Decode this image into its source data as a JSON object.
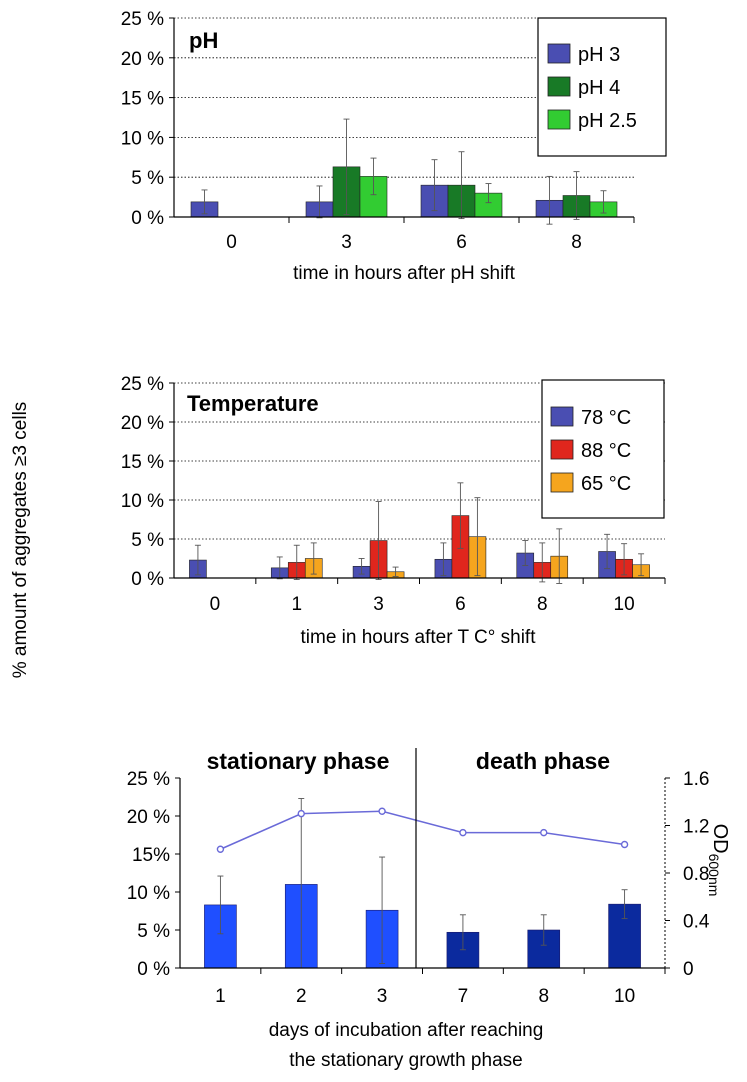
{
  "shared_ylabel": "% amount of  aggregates   ≥3 cells",
  "chart_data": [
    {
      "type": "bar",
      "panel_title": "pH",
      "xlabel": "time in hours after pH shift",
      "ylim": [
        0,
        25
      ],
      "ytick_labels": [
        "0 %",
        "5 %",
        "10 %",
        "15 %",
        "20 %",
        "25 %"
      ],
      "grid": "horizontal dotted",
      "legend_placement": "top-right",
      "categories": [
        "0",
        "3",
        "6",
        "8"
      ],
      "series": [
        {
          "name": "pH 3",
          "color": "#4a4eb2",
          "values": [
            1.9,
            1.9,
            4.0,
            2.1
          ],
          "errors": [
            1.5,
            2.0,
            3.2,
            3.0
          ]
        },
        {
          "name": "pH 4",
          "color": "#187a26",
          "values": [
            null,
            6.3,
            4.0,
            2.7
          ],
          "errors": [
            null,
            6.0,
            4.2,
            3.0
          ]
        },
        {
          "name": "pH 2.5",
          "color": "#32cc32",
          "values": [
            null,
            5.1,
            3.0,
            1.9
          ],
          "errors": [
            null,
            2.3,
            1.2,
            1.4
          ]
        }
      ]
    },
    {
      "type": "bar",
      "panel_title": "Temperature",
      "xlabel": "time in hours after T C° shift",
      "ylim": [
        0,
        25
      ],
      "ytick_labels": [
        "0 %",
        "5 %",
        "10 %",
        "15 %",
        "20 %",
        "25 %"
      ],
      "grid": "horizontal dotted",
      "legend_placement": "top-right",
      "categories": [
        "0",
        "1",
        "3",
        "6",
        "8",
        "10"
      ],
      "series": [
        {
          "name": "78 °C",
          "color": "#4a4eb2",
          "values": [
            2.3,
            1.3,
            1.5,
            2.4,
            3.2,
            3.4
          ],
          "errors": [
            1.9,
            1.4,
            1.0,
            2.1,
            1.6,
            2.2
          ]
        },
        {
          "name": "88 °C",
          "color": "#e0261d",
          "values": [
            null,
            2.0,
            4.8,
            8.0,
            2.0,
            2.4
          ],
          "errors": [
            null,
            2.2,
            5.0,
            4.2,
            2.5,
            2.0
          ]
        },
        {
          "name": "65 °C",
          "color": "#f5a51e",
          "values": [
            null,
            2.5,
            0.8,
            5.3,
            2.8,
            1.7
          ],
          "errors": [
            null,
            2.0,
            0.6,
            5.0,
            3.5,
            1.4
          ]
        }
      ]
    },
    {
      "type": "bar+line",
      "phases": [
        "stationary phase",
        "death  phase"
      ],
      "xlabel_lines": [
        "days of incubation after reaching",
        "the stationary growth phase"
      ],
      "categories": [
        "1",
        "2",
        "3",
        "7",
        "8",
        "10"
      ],
      "ylim": [
        0,
        25
      ],
      "ytick_labels": [
        "0 %",
        "5 %",
        "10 %",
        "15%",
        "20 %",
        "25 %"
      ],
      "y2lim": [
        0,
        1.6
      ],
      "y2tick_labels": [
        "0",
        "0.4",
        "0.8",
        "1.2",
        "1.6"
      ],
      "y2label": "OD",
      "y2label_sub": "600nm",
      "grid": "none",
      "bars": {
        "values": [
          8.3,
          11.0,
          7.6,
          4.7,
          5.0,
          8.4
        ],
        "errors": [
          3.8,
          11.3,
          7.0,
          2.3,
          2.0,
          1.9
        ],
        "colors": [
          "#1f4fff",
          "#1f4fff",
          "#1f4fff",
          "#0b2a9e",
          "#0b2a9e",
          "#0b2a9e"
        ]
      },
      "line": {
        "color": "#6a6ad8",
        "values": [
          1.0,
          1.3,
          1.32,
          1.14,
          1.14,
          1.04
        ]
      }
    }
  ]
}
